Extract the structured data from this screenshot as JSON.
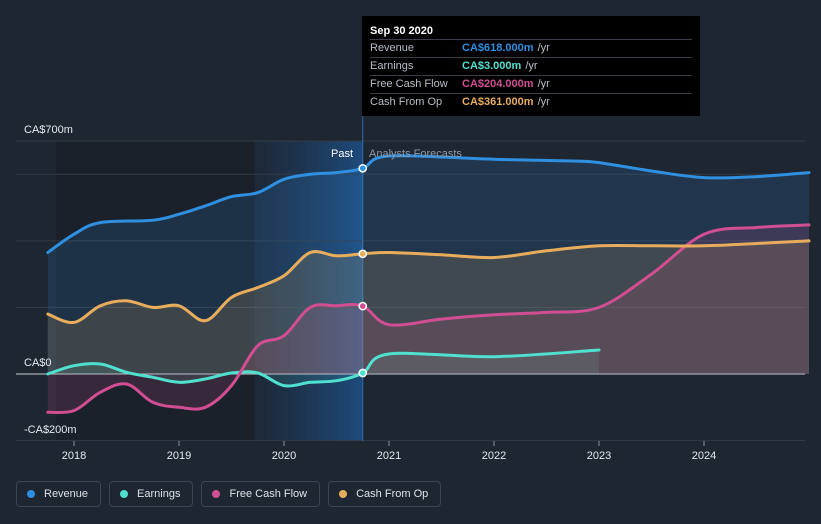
{
  "chart_data": {
    "type": "line",
    "title": "",
    "xlabel": "",
    "ylabel": "",
    "ylim": [
      -200,
      700
    ],
    "y_tick_labels": [
      "CA$700m",
      "CA$0",
      "-CA$200m"
    ],
    "x_tick_labels": [
      "2018",
      "2019",
      "2020",
      "2021",
      "2022",
      "2023",
      "2024"
    ],
    "x_ticks": [
      2018,
      2019,
      2020,
      2021,
      2022,
      2023,
      2024
    ],
    "region_labels": {
      "past": "Past",
      "forecast": "Analysts Forecasts"
    },
    "divider_x": 2020.75,
    "series": [
      {
        "name": "Revenue",
        "key": "revenue",
        "color": "#2f8fe0",
        "x": [
          2017.75,
          2018.0,
          2018.25,
          2018.75,
          2019.0,
          2019.25,
          2019.5,
          2019.75,
          2020.0,
          2020.25,
          2020.5,
          2020.75,
          2021.0,
          2022.0,
          2022.75,
          2023.0,
          2023.5,
          2024.0,
          2024.5,
          2025.0
        ],
        "y": [
          365,
          420,
          455,
          462,
          480,
          505,
          533,
          545,
          585,
          600,
          605,
          618,
          655,
          645,
          640,
          635,
          610,
          590,
          593,
          605
        ]
      },
      {
        "name": "Earnings",
        "key": "earnings",
        "color": "#4fe0d0",
        "x": [
          2017.75,
          2018.0,
          2018.25,
          2018.5,
          2018.75,
          2019.0,
          2019.25,
          2019.5,
          2019.75,
          2020.0,
          2020.25,
          2020.5,
          2020.75,
          2021.0,
          2022.0,
          2023.0
        ],
        "y": [
          0,
          25,
          30,
          5,
          -10,
          -25,
          -15,
          3,
          3,
          -35,
          -25,
          -20,
          3,
          60,
          52,
          72
        ]
      },
      {
        "name": "Free Cash Flow",
        "key": "free_cash_flow",
        "color": "#d14e93",
        "x": [
          2017.75,
          2018.0,
          2018.25,
          2018.5,
          2018.75,
          2019.0,
          2019.25,
          2019.5,
          2019.75,
          2020.0,
          2020.25,
          2020.5,
          2020.75,
          2021.0,
          2021.5,
          2022.0,
          2022.5,
          2023.0,
          2023.5,
          2024.0,
          2024.5,
          2025.0
        ],
        "y": [
          -115,
          -110,
          -55,
          -30,
          -85,
          -100,
          -100,
          -35,
          85,
          115,
          200,
          205,
          204,
          148,
          165,
          178,
          185,
          200,
          300,
          420,
          440,
          448
        ]
      },
      {
        "name": "Cash From Op",
        "key": "cash_from_op",
        "color": "#e8ad5c",
        "x": [
          2017.75,
          2018.0,
          2018.25,
          2018.5,
          2018.75,
          2019.0,
          2019.25,
          2019.5,
          2019.75,
          2020.0,
          2020.25,
          2020.5,
          2020.75,
          2021.0,
          2021.5,
          2022.0,
          2022.5,
          2023.0,
          2023.5,
          2024.0,
          2024.5,
          2025.0
        ],
        "y": [
          180,
          155,
          205,
          220,
          200,
          205,
          160,
          230,
          260,
          295,
          365,
          355,
          361,
          365,
          358,
          350,
          370,
          385,
          385,
          385,
          392,
          400
        ]
      }
    ]
  },
  "tooltip": {
    "date": "Sep 30 2020",
    "rows": [
      {
        "name": "Revenue",
        "value": "CA$618.000m",
        "unit": "/yr",
        "color": "#2f8fe0"
      },
      {
        "name": "Earnings",
        "value": "CA$3.000m",
        "unit": "/yr",
        "color": "#4fe0d0"
      },
      {
        "name": "Free Cash Flow",
        "value": "CA$204.000m",
        "unit": "/yr",
        "color": "#d14e93"
      },
      {
        "name": "Cash From Op",
        "value": "CA$361.000m",
        "unit": "/yr",
        "color": "#e8ad5c"
      }
    ]
  },
  "legend": [
    {
      "label": "Revenue",
      "color": "#2f8fe0"
    },
    {
      "label": "Earnings",
      "color": "#4fe0d0"
    },
    {
      "label": "Free Cash Flow",
      "color": "#d14e93"
    },
    {
      "label": "Cash From Op",
      "color": "#e8ad5c"
    }
  ]
}
